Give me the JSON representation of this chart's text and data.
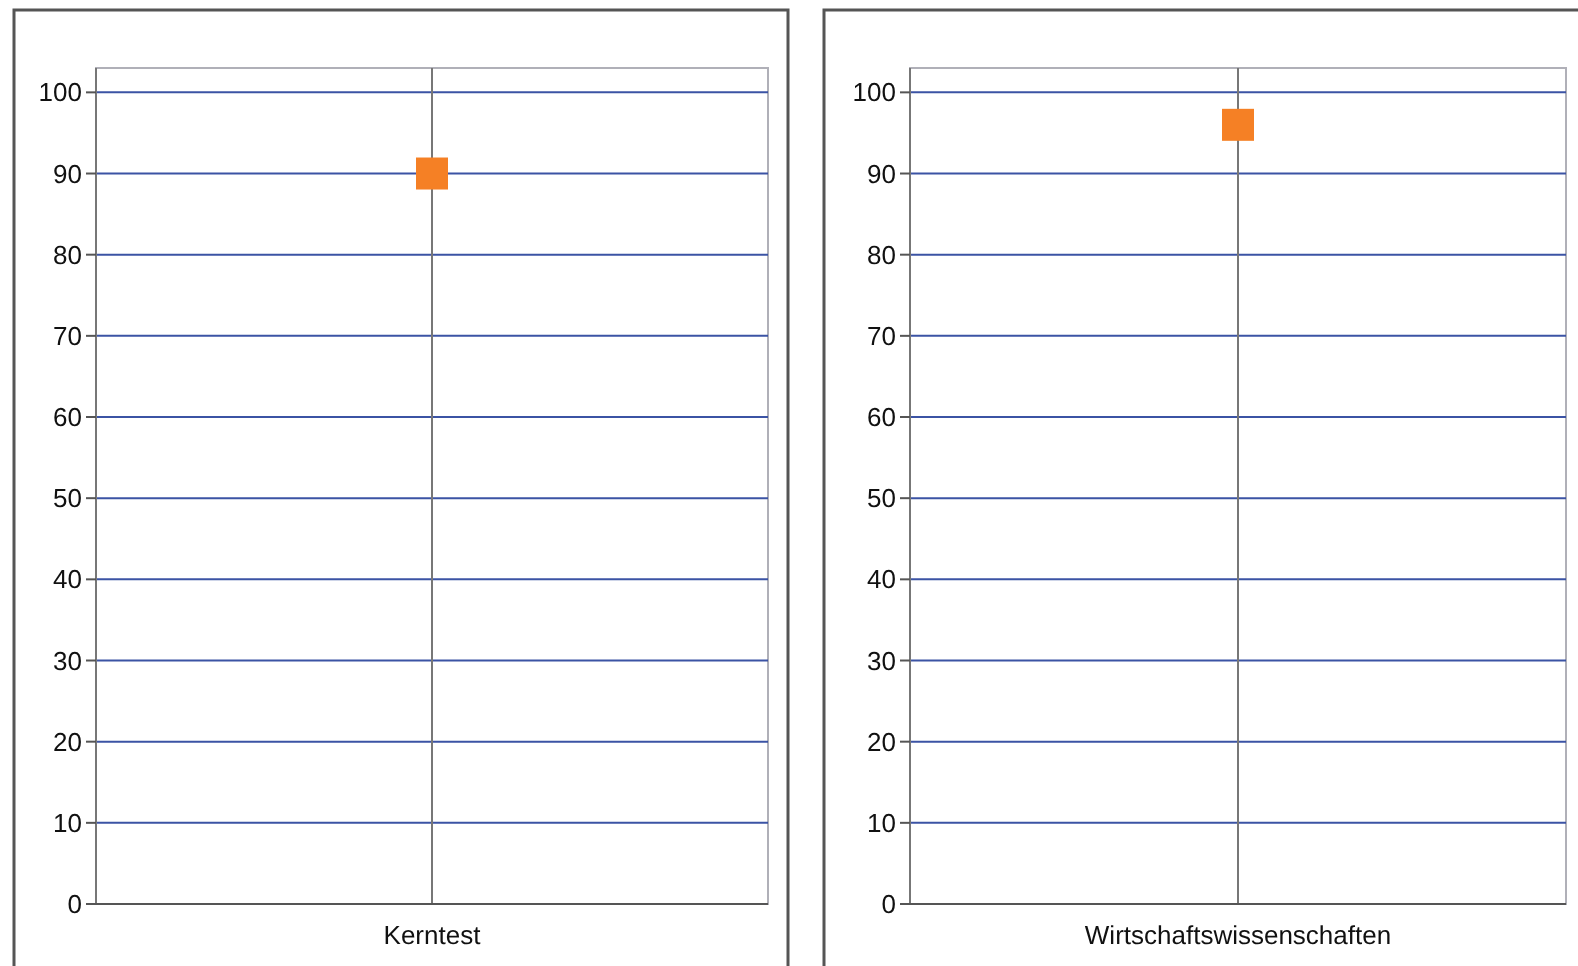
{
  "chart_data": [
    {
      "type": "scatter",
      "categories": [
        "Kerntest"
      ],
      "series": [
        {
          "color": "#f58025",
          "values": [
            90
          ]
        }
      ],
      "ylim": [
        0,
        103
      ],
      "yticks": [
        0,
        10,
        20,
        30,
        40,
        50,
        60,
        70,
        80,
        90,
        100
      ],
      "grid": "y",
      "marker": "square",
      "ref_lines": [
        {
          "axis": "x",
          "value": "Kerntest",
          "color": "#777777"
        }
      ]
    },
    {
      "type": "scatter",
      "categories": [
        "Wirtschaftswissenschaften"
      ],
      "series": [
        {
          "color": "#f58025",
          "values": [
            96
          ]
        }
      ],
      "ylim": [
        0,
        103
      ],
      "yticks": [
        0,
        10,
        20,
        30,
        40,
        50,
        60,
        70,
        80,
        90,
        100
      ],
      "grid": "y",
      "marker": "square",
      "ref_lines": [
        {
          "axis": "x",
          "value": "Wirtschaftswissenschaften",
          "color": "#777777"
        }
      ]
    }
  ]
}
